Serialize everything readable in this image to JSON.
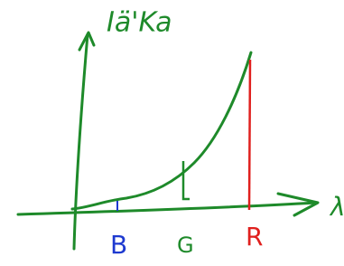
{
  "axes": {
    "y_label": "Iä'Ka",
    "x_label": "λ"
  },
  "markers": [
    {
      "label": "B"
    },
    {
      "label": "G"
    },
    {
      "label": "R"
    }
  ]
}
